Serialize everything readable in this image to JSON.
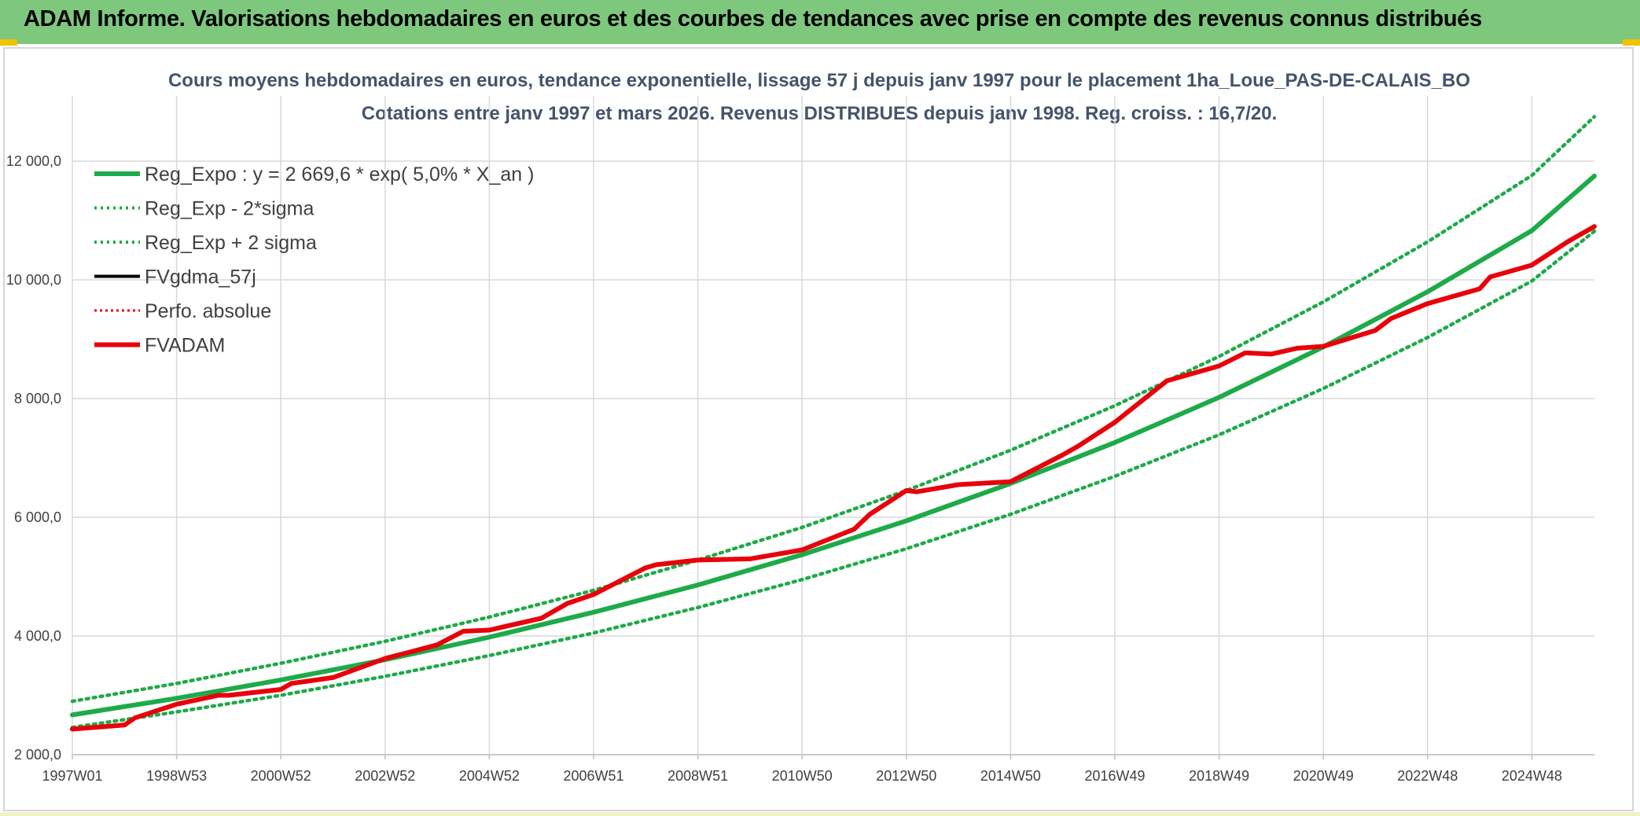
{
  "banner": {
    "title": "ADAM Informe. Valorisations hebdomadaires en euros et des courbes de tendances avec prise en compte des revenus connus distribués"
  },
  "colors": {
    "banner_bg": "#7dc87d",
    "trend": "#1faa4a",
    "series_black": "#000000",
    "series_red": "#e8000b",
    "title_text": "#44546a",
    "grid": "#d9d9d9"
  },
  "chart_data": {
    "type": "line",
    "title": "Cours moyens hebdomadaires en euros, tendance exponentielle, lissage 57 j depuis janv 1997 pour le placement 1ha_Loue_PAS-DE-CALAIS_BO",
    "subtitle": "Cotations entre janv 1997 et mars 2026. Revenus DISTRIBUES depuis janv 1998. Reg. croiss. : 16,7/20.",
    "xlabel": "",
    "ylabel": "",
    "x_tick_labels": [
      "1997W01",
      "1998W53",
      "2000W52",
      "2002W52",
      "2004W52",
      "2006W51",
      "2008W51",
      "2010W50",
      "2012W50",
      "2014W50",
      "2016W49",
      "2018W49",
      "2020W49",
      "2022W48",
      "2024W48"
    ],
    "x_tick_years": [
      1997.0,
      1999.0,
      2001.0,
      2003.0,
      2005.0,
      2007.0,
      2009.0,
      2011.0,
      2013.0,
      2015.0,
      2017.0,
      2019.0,
      2021.0,
      2023.0,
      2025.0
    ],
    "xlim": [
      1997.0,
      2026.2
    ],
    "y_tick_labels": [
      "2 000,0",
      "4 000,0",
      "6 000,0",
      "8 000,0",
      "10 000,0",
      "12 000,0"
    ],
    "y_ticks": [
      2000,
      4000,
      6000,
      8000,
      10000,
      12000
    ],
    "ylim": [
      2000,
      13100
    ],
    "grid": true,
    "legend_position": "top-left",
    "legend": [
      {
        "label": "Reg_Expo : y = 2 669,6 * exp( 5,0% *  X_an )",
        "style": "solid-thick",
        "color": "#1faa4a"
      },
      {
        "label": "Reg_Exp - 2*sigma",
        "style": "dotted",
        "color": "#1faa4a"
      },
      {
        "label": "Reg_Exp + 2 sigma",
        "style": "dotted",
        "color": "#1faa4a"
      },
      {
        "label": "FVgdma_57j",
        "style": "solid",
        "color": "#000000"
      },
      {
        "label": "Perfo. absolue",
        "style": "dotted",
        "color": "#e8000b"
      },
      {
        "label": "FVADAM",
        "style": "solid-thick",
        "color": "#e8000b"
      }
    ],
    "series": [
      {
        "name": "Reg_Expo : y = 2 669,6 * exp( 5,0% *  X_an )",
        "x": [
          1997.0,
          1999.0,
          2001.0,
          2003.0,
          2005.0,
          2007.0,
          2009.0,
          2011.0,
          2013.0,
          2015.0,
          2017.0,
          2019.0,
          2021.0,
          2023.0,
          2025.0,
          2026.2
        ],
        "values": [
          2670,
          2950,
          3260,
          3600,
          3980,
          4400,
          4860,
          5370,
          5940,
          6570,
          7260,
          8020,
          8870,
          9800,
          10830,
          11750
        ]
      },
      {
        "name": "Reg_Exp - 2*sigma",
        "x": [
          1997.0,
          1999.0,
          2001.0,
          2003.0,
          2005.0,
          2007.0,
          2009.0,
          2011.0,
          2013.0,
          2015.0,
          2017.0,
          2019.0,
          2021.0,
          2023.0,
          2025.0,
          2026.2
        ],
        "values": [
          2460,
          2720,
          3000,
          3320,
          3670,
          4050,
          4480,
          4950,
          5470,
          6050,
          6690,
          7390,
          8170,
          9030,
          9980,
          10820
        ]
      },
      {
        "name": "Reg_Exp + 2 sigma",
        "x": [
          1997.0,
          1999.0,
          2001.0,
          2003.0,
          2005.0,
          2007.0,
          2009.0,
          2011.0,
          2013.0,
          2015.0,
          2017.0,
          2019.0,
          2021.0,
          2023.0,
          2025.0,
          2026.2
        ],
        "values": [
          2900,
          3200,
          3540,
          3910,
          4320,
          4770,
          5280,
          5830,
          6450,
          7130,
          7880,
          8710,
          9630,
          10640,
          11760,
          12750
        ]
      },
      {
        "name": "FVgdma_57j",
        "x": [
          1997.0,
          1998.0,
          1998.2,
          1999.0,
          1999.8,
          2000.0,
          2001.0,
          2001.2,
          2002.0,
          2003.0,
          2004.0,
          2004.5,
          2005.0,
          2006.0,
          2006.5,
          2007.0,
          2008.0,
          2008.2,
          2009.0,
          2010.0,
          2011.0,
          2012.0,
          2012.3,
          2013.0,
          2013.2,
          2014.0,
          2015.0,
          2016.0,
          2016.3,
          2017.0,
          2018.0,
          2019.0,
          2019.5,
          2020.0,
          2020.5,
          2021.0,
          2022.0,
          2022.3,
          2023.0,
          2024.0,
          2024.2,
          2025.0,
          2025.7,
          2026.2
        ],
        "values": [
          2430,
          2500,
          2620,
          2850,
          3000,
          3000,
          3100,
          3200,
          3300,
          3620,
          3850,
          4080,
          4100,
          4300,
          4550,
          4700,
          5150,
          5200,
          5280,
          5300,
          5450,
          5800,
          6050,
          6450,
          6430,
          6550,
          6600,
          7050,
          7200,
          7600,
          8300,
          8550,
          8770,
          8750,
          8850,
          8880,
          9150,
          9350,
          9600,
          9850,
          10050,
          10250,
          10650,
          10900
        ]
      },
      {
        "name": "FVADAM",
        "x": [
          1997.0,
          1998.0,
          1998.2,
          1999.0,
          1999.8,
          2000.0,
          2001.0,
          2001.2,
          2002.0,
          2003.0,
          2004.0,
          2004.5,
          2005.0,
          2006.0,
          2006.5,
          2007.0,
          2008.0,
          2008.2,
          2009.0,
          2010.0,
          2011.0,
          2012.0,
          2012.3,
          2013.0,
          2013.2,
          2014.0,
          2015.0,
          2016.0,
          2016.3,
          2017.0,
          2018.0,
          2019.0,
          2019.5,
          2020.0,
          2020.5,
          2021.0,
          2022.0,
          2022.3,
          2023.0,
          2024.0,
          2024.2,
          2025.0,
          2025.7,
          2026.2
        ],
        "values": [
          2430,
          2500,
          2620,
          2850,
          3000,
          3000,
          3100,
          3200,
          3300,
          3620,
          3850,
          4080,
          4100,
          4300,
          4550,
          4700,
          5150,
          5200,
          5280,
          5300,
          5450,
          5800,
          6050,
          6450,
          6430,
          6550,
          6600,
          7050,
          7200,
          7600,
          8300,
          8550,
          8770,
          8750,
          8850,
          8880,
          9150,
          9350,
          9600,
          9850,
          10050,
          10250,
          10650,
          10900
        ]
      }
    ]
  }
}
